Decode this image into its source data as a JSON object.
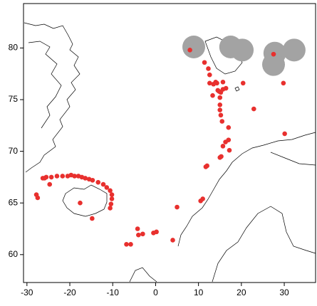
{
  "chart_data": {
    "type": "scatter",
    "xlim": [
      -30.8,
      37.3
    ],
    "ylim": [
      57.3,
      84.3
    ],
    "xticks": [
      -30,
      -20,
      -10,
      0,
      10,
      20,
      30
    ],
    "yticks": [
      60,
      65,
      70,
      75,
      80
    ],
    "series": [
      {
        "color": "#a3a3a3",
        "x": [
          8.9,
          17.5,
          20.2,
          27.8,
          27.5,
          32.3
        ],
        "values": [
          80.1,
          80.1,
          79.8,
          79.5,
          78.4,
          79.8
        ]
      },
      {
        "color": "#e8302e",
        "x": [
          -26.3,
          -25.5,
          -24.3,
          -23.0,
          -21.7,
          -20.5,
          -19.7,
          -18.9,
          -18.0,
          -17.2,
          -16.4,
          -15.5,
          -14.7,
          -13.4,
          -12.2,
          -11.4,
          -10.6,
          -10.2,
          -10.2,
          -10.4,
          -10.6,
          -27.8,
          -27.5,
          -25.9,
          -24.7,
          -17.6,
          -14.8,
          -6.8,
          -5.8,
          -4.2,
          -4.0,
          -3.0,
          -0.5,
          0.2,
          4.0,
          5.0,
          10.5,
          11.0,
          11.7,
          12.0,
          15.0,
          15.3,
          15.7,
          16.3,
          17.0,
          15.5,
          15.2,
          15.0,
          15.0,
          15.0,
          15.2,
          15.7,
          15.7,
          14.8,
          14.3,
          12.6,
          13.5,
          14.0,
          14.5,
          13.3,
          12.6,
          12.3,
          11.4,
          16.4,
          17.0,
          17.2,
          20.4,
          22.9,
          29.8,
          30.1,
          8.0,
          27.5
        ],
        "values": [
          67.4,
          67.5,
          67.5,
          67.6,
          67.6,
          67.6,
          67.7,
          67.6,
          67.6,
          67.5,
          67.4,
          67.3,
          67.2,
          67.0,
          66.8,
          66.5,
          66.2,
          65.8,
          65.4,
          64.9,
          64.5,
          65.8,
          65.5,
          67.4,
          66.8,
          65.0,
          63.5,
          61.0,
          61.0,
          62.5,
          61.9,
          62.0,
          62.1,
          62.2,
          61.4,
          64.6,
          65.2,
          65.4,
          68.5,
          68.6,
          69.4,
          69.5,
          70.5,
          70.9,
          72.3,
          72.9,
          73.5,
          74.0,
          74.5,
          75.2,
          75.7,
          76.0,
          76.7,
          75.8,
          76.6,
          76.6,
          76.5,
          76.7,
          75.9,
          75.4,
          77.4,
          78.0,
          78.6,
          76.1,
          71.1,
          70.1,
          76.6,
          74.1,
          76.6,
          71.7,
          79.8,
          79.4
        ]
      }
    ]
  }
}
